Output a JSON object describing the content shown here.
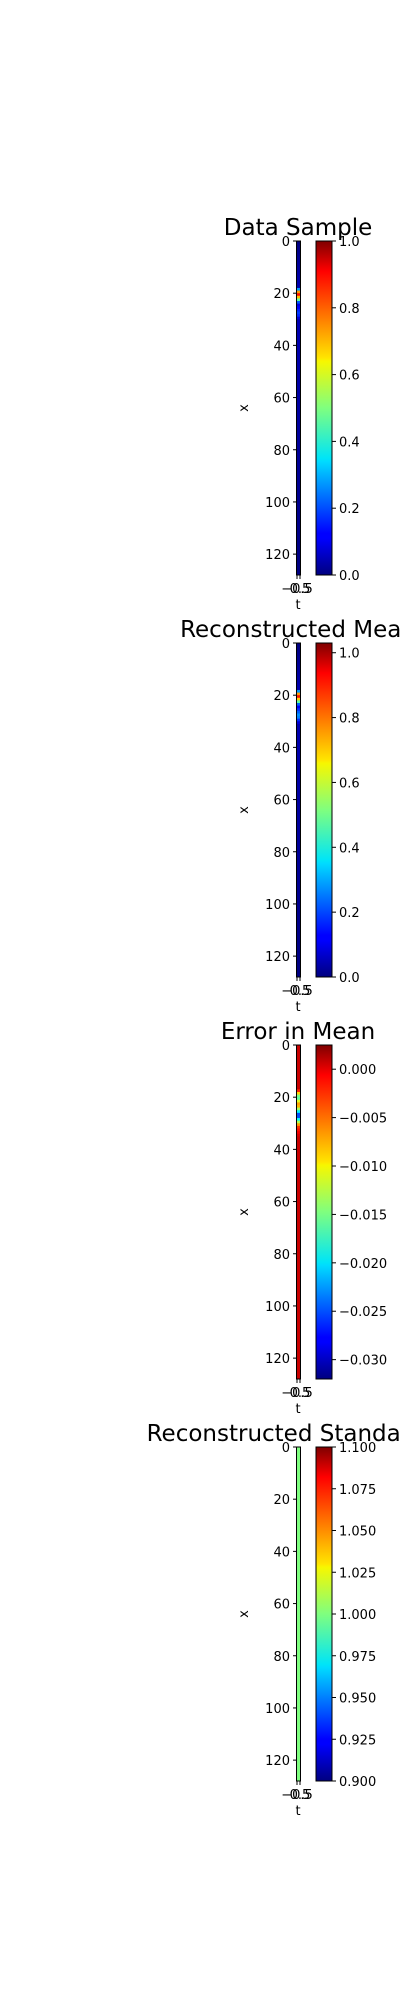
{
  "chart_data": [
    {
      "type": "heatmap",
      "title": "Data Sample",
      "xlabel": "t",
      "ylabel": "x",
      "x_ticks": [
        "−0.5",
        "0.5"
      ],
      "y_ticks": [
        "0",
        "20",
        "40",
        "60",
        "80",
        "100",
        "120"
      ],
      "y_range": [
        0,
        128
      ],
      "column_profile": [
        {
          "x": 0,
          "value": 0.0
        },
        {
          "x": 18,
          "value": 0.05
        },
        {
          "x": 20,
          "value": 0.95
        },
        {
          "x": 22,
          "value": 0.6
        },
        {
          "x": 24,
          "value": 0.08
        },
        {
          "x": 28,
          "value": 0.2
        },
        {
          "x": 30,
          "value": 0.05
        },
        {
          "x": 128,
          "value": 0.0
        }
      ],
      "colorbar": {
        "min": 0.0,
        "max": 1.0,
        "ticks": [
          "0.0",
          "0.2",
          "0.4",
          "0.6",
          "0.8",
          "1.0"
        ],
        "tick_values": [
          0.0,
          0.2,
          0.4,
          0.6,
          0.8,
          1.0
        ],
        "colormap": "jet"
      }
    },
    {
      "type": "heatmap",
      "title": "Reconstructed Mean",
      "xlabel": "t",
      "ylabel": "x",
      "x_ticks": [
        "−0.5",
        "0.5"
      ],
      "y_ticks": [
        "0",
        "20",
        "40",
        "60",
        "80",
        "100",
        "120"
      ],
      "y_range": [
        0,
        128
      ],
      "column_profile": [
        {
          "x": 0,
          "value": 0.0
        },
        {
          "x": 18,
          "value": 0.05
        },
        {
          "x": 20,
          "value": 0.98
        },
        {
          "x": 22,
          "value": 0.6
        },
        {
          "x": 24,
          "value": 0.1
        },
        {
          "x": 28,
          "value": 0.3
        },
        {
          "x": 31,
          "value": 0.05
        },
        {
          "x": 128,
          "value": 0.0
        }
      ],
      "colorbar": {
        "min": 0.0,
        "max": 1.03,
        "ticks": [
          "0.0",
          "0.2",
          "0.4",
          "0.6",
          "0.8",
          "1.0"
        ],
        "tick_values": [
          0.0,
          0.2,
          0.4,
          0.6,
          0.8,
          1.0
        ],
        "colormap": "jet"
      }
    },
    {
      "type": "heatmap",
      "title": "Error in Mean",
      "xlabel": "t",
      "ylabel": "x",
      "x_ticks": [
        "−0.5",
        "0.5"
      ],
      "y_ticks": [
        "0",
        "20",
        "40",
        "60",
        "80",
        "100",
        "120"
      ],
      "y_range": [
        0,
        128
      ],
      "column_profile": [
        {
          "x": 0,
          "value": 0.0
        },
        {
          "x": 17,
          "value": 0.0
        },
        {
          "x": 20,
          "value": -0.018
        },
        {
          "x": 23,
          "value": -0.005
        },
        {
          "x": 27,
          "value": -0.028
        },
        {
          "x": 31,
          "value": -0.004
        },
        {
          "x": 35,
          "value": 0.0
        },
        {
          "x": 128,
          "value": 0.0
        }
      ],
      "colorbar": {
        "min": -0.032,
        "max": 0.0025,
        "ticks": [
          "0.000",
          "−0.005",
          "−0.010",
          "−0.015",
          "−0.020",
          "−0.025",
          "−0.030"
        ],
        "tick_values": [
          0.0,
          -0.005,
          -0.01,
          -0.015,
          -0.02,
          -0.025,
          -0.03
        ],
        "colormap": "jet"
      }
    },
    {
      "type": "heatmap",
      "title": "Reconstructed Standard D",
      "xlabel": "t",
      "ylabel": "x",
      "x_ticks": [
        "−0.5",
        "0.5"
      ],
      "y_ticks": [
        "0",
        "20",
        "40",
        "60",
        "80",
        "100",
        "120"
      ],
      "y_range": [
        0,
        128
      ],
      "column_profile": [
        {
          "x": 0,
          "value": 1.0
        },
        {
          "x": 128,
          "value": 1.0
        }
      ],
      "colorbar": {
        "min": 0.9,
        "max": 1.1,
        "ticks": [
          "0.900",
          "0.925",
          "0.950",
          "0.975",
          "1.000",
          "1.025",
          "1.050",
          "1.075",
          "1.100"
        ],
        "tick_values": [
          0.9,
          0.925,
          0.95,
          0.975,
          1.0,
          1.025,
          1.05,
          1.075,
          1.1
        ],
        "colormap": "jet"
      }
    }
  ]
}
